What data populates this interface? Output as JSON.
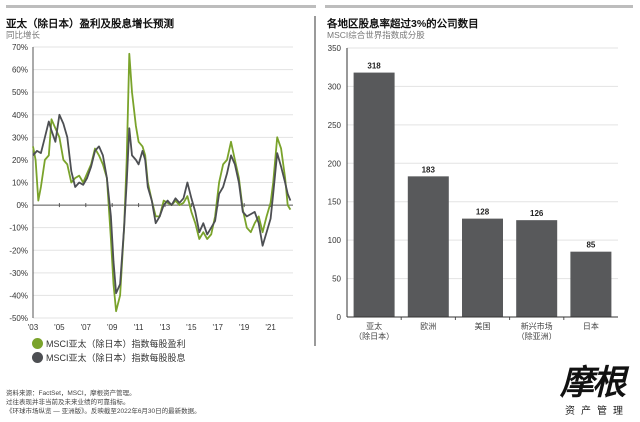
{
  "left_panel": {
    "title": "亚太（除日本）盈利及股息增长预测",
    "subtitle": "同比增长",
    "legend": [
      {
        "label": "MSCI亚太（除日本）指数每股盈利",
        "color": "#7aa32b"
      },
      {
        "label": "MSCI亚太（除日本）指数每股股息",
        "color": "#4d4f53"
      }
    ]
  },
  "right_panel": {
    "title": "各地区股息率超过3%的公司数目",
    "subtitle": "MSCI综合世界指数成分股"
  },
  "footnotes": [
    "资料来源：FactSet，MSCI，摩根资产管理。",
    "过往表现并非当前及未来业绩的可靠指标。",
    "《环球市场纵览 — 亚洲版》。反映截至2022年6月30日的最新数据。"
  ],
  "logo": {
    "text": "摩根",
    "subtitle": "资产管理"
  },
  "chart_data": [
    {
      "type": "line",
      "title": "亚太（除日本）盈利及股息增长预测",
      "ylabel": "同比增长",
      "ylim": [
        -50,
        70
      ],
      "xlim": [
        2003,
        2022.7
      ],
      "yticks": [
        "70%",
        "60%",
        "50%",
        "40%",
        "30%",
        "20%",
        "10%",
        "0%",
        "-10%",
        "-20%",
        "-30%",
        "-40%",
        "-50%"
      ],
      "ytick_values": [
        70,
        60,
        50,
        40,
        30,
        20,
        10,
        0,
        -10,
        -20,
        -30,
        -40,
        -50
      ],
      "xticks": [
        "'03",
        "'05",
        "'07",
        "'09",
        "'11",
        "'13",
        "'15",
        "'17",
        "'19",
        "'21"
      ],
      "xtick_values": [
        2003,
        2005,
        2007,
        2009,
        2011,
        2013,
        2015,
        2017,
        2019,
        2021
      ],
      "grid": true,
      "legend_position": "bottom-left",
      "series": [
        {
          "name": "MSCI亚太（除日本）指数每股盈利",
          "color": "#7aa32b",
          "x": [
            2003.0,
            2003.2,
            2003.4,
            2003.6,
            2003.9,
            2004.2,
            2004.4,
            2004.7,
            2005.0,
            2005.3,
            2005.6,
            2005.9,
            2006.2,
            2006.5,
            2006.8,
            2007.1,
            2007.4,
            2007.7,
            2008.0,
            2008.3,
            2008.6,
            2008.9,
            2009.1,
            2009.3,
            2009.6,
            2009.9,
            2010.1,
            2010.3,
            2010.5,
            2010.8,
            2011.0,
            2011.3,
            2011.5,
            2011.7,
            2012.0,
            2012.3,
            2012.6,
            2012.9,
            2013.2,
            2013.5,
            2013.8,
            2014.1,
            2014.4,
            2014.7,
            2015.0,
            2015.3,
            2015.6,
            2015.9,
            2016.2,
            2016.5,
            2016.8,
            2017.1,
            2017.4,
            2017.7,
            2018.0,
            2018.3,
            2018.6,
            2018.9,
            2019.2,
            2019.5,
            2019.8,
            2020.1,
            2020.4,
            2020.7,
            2021.0,
            2021.2,
            2021.5,
            2021.8,
            2022.1,
            2022.3,
            2022.5
          ],
          "y": [
            26,
            20,
            2,
            8,
            20,
            22,
            38,
            34,
            30,
            20,
            18,
            10,
            12,
            13,
            10,
            14,
            18,
            25,
            22,
            18,
            12,
            -15,
            -35,
            -47,
            -40,
            -10,
            20,
            67,
            50,
            35,
            28,
            26,
            22,
            10,
            2,
            -5,
            -5,
            2,
            1,
            0,
            2,
            0,
            1,
            4,
            -3,
            -8,
            -15,
            -12,
            -15,
            -13,
            -5,
            10,
            18,
            20,
            28,
            20,
            12,
            -2,
            -10,
            -12,
            -8,
            -5,
            -12,
            -5,
            1,
            10,
            30,
            25,
            12,
            0,
            -2
          ]
        },
        {
          "name": "MSCI亚太（除日本）指数每股股息",
          "color": "#4d4f53",
          "x": [
            2003.0,
            2003.3,
            2003.6,
            2003.9,
            2004.2,
            2004.4,
            2004.7,
            2005.0,
            2005.3,
            2005.6,
            2005.9,
            2006.2,
            2006.5,
            2006.8,
            2007.1,
            2007.4,
            2007.7,
            2008.0,
            2008.3,
            2008.6,
            2008.9,
            2009.1,
            2009.3,
            2009.6,
            2009.9,
            2010.1,
            2010.3,
            2010.5,
            2010.8,
            2011.0,
            2011.3,
            2011.5,
            2011.7,
            2012.0,
            2012.3,
            2012.6,
            2012.9,
            2013.2,
            2013.5,
            2013.8,
            2014.1,
            2014.4,
            2014.7,
            2015.0,
            2015.3,
            2015.6,
            2015.9,
            2016.2,
            2016.5,
            2016.8,
            2017.1,
            2017.4,
            2017.7,
            2018.0,
            2018.3,
            2018.6,
            2018.9,
            2019.2,
            2019.5,
            2019.8,
            2020.1,
            2020.4,
            2020.7,
            2021.0,
            2021.2,
            2021.5,
            2021.8,
            2022.1,
            2022.3,
            2022.5
          ],
          "y": [
            22,
            24,
            23,
            30,
            37,
            33,
            28,
            40,
            36,
            30,
            15,
            8,
            10,
            9,
            12,
            17,
            24,
            26,
            22,
            12,
            -5,
            -25,
            -39,
            -35,
            -10,
            10,
            34,
            22,
            20,
            18,
            24,
            20,
            8,
            2,
            -8,
            -5,
            0,
            2,
            0,
            3,
            1,
            3,
            10,
            3,
            -3,
            -12,
            -8,
            -13,
            -10,
            -7,
            5,
            8,
            14,
            22,
            18,
            10,
            -3,
            -5,
            -4,
            -3,
            -8,
            -18,
            -12,
            -6,
            5,
            23,
            17,
            10,
            5,
            2
          ]
        }
      ]
    },
    {
      "type": "bar",
      "title": "各地区股息率超过3%的公司数目",
      "subtitle": "MSCI综合世界指数成分股",
      "categories": [
        [
          "亚太",
          "（除日本）"
        ],
        [
          "欧洲",
          ""
        ],
        [
          "美国",
          ""
        ],
        [
          "新兴市场",
          "（除亚洲）"
        ],
        [
          "日本",
          ""
        ]
      ],
      "values": [
        318,
        183,
        128,
        126,
        85
      ],
      "ylim": [
        0,
        350
      ],
      "yticks": [
        "0",
        "50",
        "100",
        "150",
        "200",
        "250",
        "300",
        "350"
      ],
      "ytick_values": [
        0,
        50,
        100,
        150,
        200,
        250,
        300,
        350
      ],
      "bar_color": "#58595b",
      "grid": true
    }
  ]
}
